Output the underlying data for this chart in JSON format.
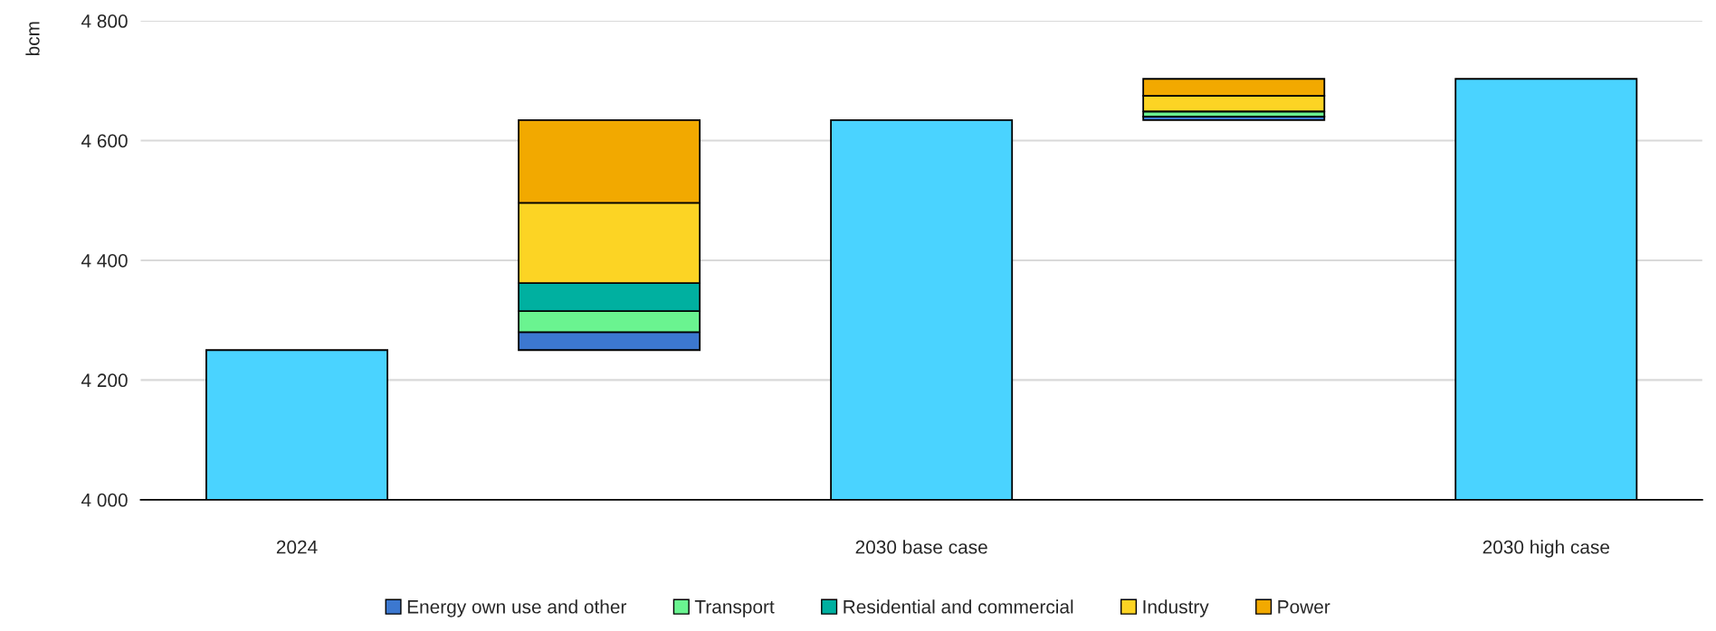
{
  "chart_data": {
    "type": "bar",
    "ylabel": "bcm",
    "categories": [
      "2024",
      null,
      "2030 base case",
      null,
      "2030 high case"
    ],
    "series": [
      {
        "color": "#4ad3ff",
        "values": [
          4250,
          null,
          4634,
          null,
          4703
        ]
      },
      {
        "name": "Energy own use and other",
        "color": "#3c78d0",
        "base": [
          null,
          4250,
          null,
          4634,
          null
        ],
        "values": [
          null,
          30,
          null,
          6,
          null
        ]
      },
      {
        "name": "Transport",
        "color": "#6af490",
        "base": [
          null,
          4280,
          null,
          4640,
          null
        ],
        "values": [
          null,
          35,
          null,
          8,
          null
        ]
      },
      {
        "name": "Residential and commercial",
        "color": "#00b0a0",
        "base": [
          null,
          4315,
          null,
          null,
          null
        ],
        "values": [
          null,
          47,
          null,
          null,
          null
        ]
      },
      {
        "name": "Industry",
        "color": "#fcd424",
        "base": [
          null,
          4362,
          null,
          4649,
          null
        ],
        "values": [
          null,
          134,
          null,
          26,
          null
        ]
      },
      {
        "name": "Power",
        "color": "#f2a900",
        "base": [
          null,
          4496,
          null,
          4675,
          null
        ],
        "values": [
          null,
          138,
          null,
          28,
          null
        ]
      }
    ],
    "ylim": [
      4000,
      4800
    ],
    "yticks": [
      {
        "value": 4000,
        "label": "4 000"
      },
      {
        "value": 4200,
        "label": "4 200"
      },
      {
        "value": 4400,
        "label": "4 400"
      },
      {
        "value": 4600,
        "label": "4 600"
      },
      {
        "value": 4800,
        "label": "4 800"
      }
    ],
    "grid": "y",
    "legend": "bottom"
  }
}
